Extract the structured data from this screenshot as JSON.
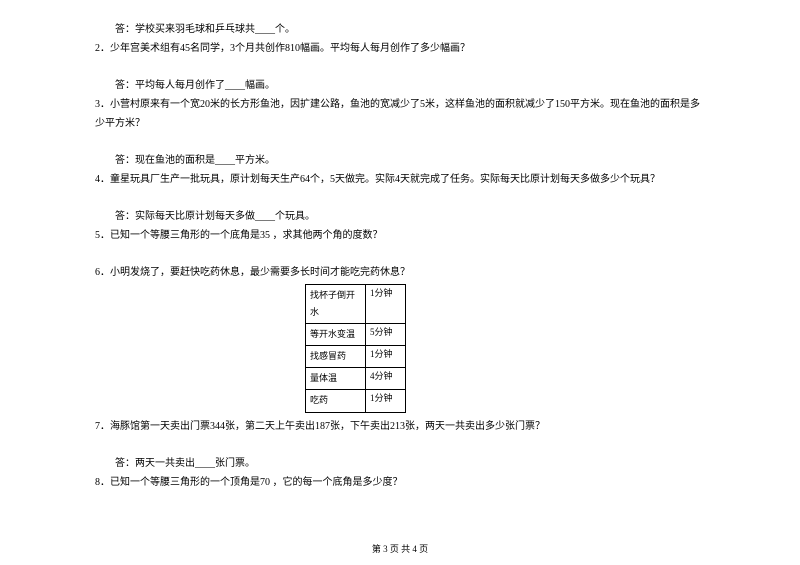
{
  "q1_followup": "答：学校买来羽毛球和乒乓球共____个。",
  "q2": "2．少年宫美术组有45名同学，3个月共创作810幅画。平均每人每月创作了多少幅画？",
  "q2_answer": "答：平均每人每月创作了____幅画。",
  "q3": "3．小营村原来有一个宽20米的长方形鱼池，因扩建公路，鱼池的宽减少了5米，这样鱼池的面积就减少了150平方米。现在鱼池的面积是多少平方米？",
  "q3_answer": "答：现在鱼池的面积是____平方米。",
  "q4": "4．童星玩具厂生产一批玩具，原计划每天生产64个，5天做完。实际4天就完成了任务。实际每天比原计划每天多做多少个玩具？",
  "q4_answer": "答：实际每天比原计划每天多做____个玩具。",
  "q5": "5．已知一个等腰三角形的一个底角是35 ，求其他两个角的度数？",
  "q6": "6．小明发烧了，要赶快吃药休息，最少需要多长时间才能吃完药休息？",
  "table": {
    "rows": [
      {
        "col1_l1": "找杯子倒开",
        "col1_l2": "水",
        "col2": "1分钟"
      },
      {
        "col1_l1": "等开水变温",
        "col1_l2": "",
        "col2": "5分钟"
      },
      {
        "col1_l1": "找感冒药",
        "col1_l2": "",
        "col2": "1分钟"
      },
      {
        "col1_l1": "量体温",
        "col1_l2": "",
        "col2": "4分钟"
      },
      {
        "col1_l1": "吃药",
        "col1_l2": "",
        "col2": "1分钟"
      }
    ]
  },
  "q7": "7．海豚馆第一天卖出门票344张，第二天上午卖出187张，下午卖出213张，两天一共卖出多少张门票？",
  "q7_answer": "答：两天一共卖出____张门票。",
  "q8": "8．已知一个等腰三角形的一个顶角是70 ，它的每一个底角是多少度？",
  "footer": "第 3 页 共 4 页"
}
